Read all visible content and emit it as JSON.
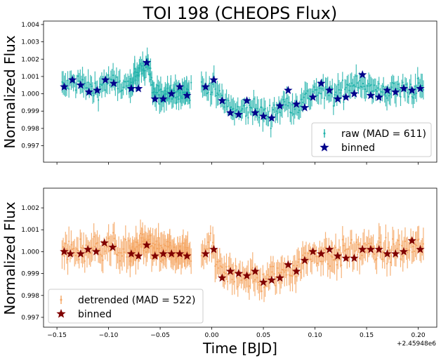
{
  "chart_data": [
    {
      "type": "scatter",
      "title": "TOI 198 (CHEOPS Flux)",
      "ylabel": "Normalized Flux",
      "xlabel": "",
      "xlim": [
        -0.163,
        0.218
      ],
      "ylim": [
        0.99605,
        1.0042
      ],
      "xticks": [
        -0.15,
        -0.1,
        -0.05,
        0.0,
        0.05,
        0.1,
        0.15,
        0.2
      ],
      "yticks": [
        0.997,
        0.998,
        0.999,
        1.0,
        1.001,
        1.002,
        1.003,
        1.004
      ],
      "ytick_labels": [
        "0.997",
        "0.998",
        "0.999",
        "1.000",
        "1.001",
        "1.002",
        "1.003",
        "1.004"
      ],
      "legend": [
        "raw (MAD = 611)",
        "binned"
      ],
      "legend_position": "lower-right",
      "raw_color": "#20b2aa",
      "binned_color": "#00008b",
      "segments": [
        [
          -0.145,
          -0.022
        ],
        [
          -0.08,
          -0.02
        ],
        [
          -0.01,
          0.205
        ]
      ],
      "trend_anchors": [
        [
          -0.145,
          1.0004
        ],
        [
          -0.13,
          1.0007
        ],
        [
          -0.115,
          1.0002
        ],
        [
          -0.1,
          1.0007
        ],
        [
          -0.08,
          1.0004
        ],
        [
          -0.062,
          1.0018
        ],
        [
          -0.055,
          0.9998
        ],
        [
          -0.04,
          1.0001
        ],
        [
          -0.025,
          1.0001
        ],
        [
          0.0,
          1.0005
        ],
        [
          0.01,
          0.9996
        ],
        [
          0.025,
          0.9989
        ],
        [
          0.04,
          0.9992
        ],
        [
          0.055,
          0.9987
        ],
        [
          0.07,
          0.9994
        ],
        [
          0.085,
          0.9994
        ],
        [
          0.1,
          1.0002
        ],
        [
          0.12,
          0.9999
        ],
        [
          0.14,
          1.0008
        ],
        [
          0.16,
          1.0001
        ],
        [
          0.2,
          1.0003
        ]
      ],
      "binned": {
        "x": [
          -0.143,
          -0.135,
          -0.127,
          -0.119,
          -0.111,
          -0.103,
          -0.095,
          -0.078,
          -0.071,
          -0.063,
          -0.055,
          -0.047,
          -0.039,
          -0.031,
          -0.024,
          -0.006,
          0.002,
          0.01,
          0.018,
          0.026,
          0.034,
          0.042,
          0.05,
          0.058,
          0.066,
          0.074,
          0.082,
          0.09,
          0.098,
          0.106,
          0.114,
          0.122,
          0.13,
          0.138,
          0.146,
          0.154,
          0.162,
          0.17,
          0.178,
          0.186,
          0.194,
          0.202
        ],
        "y": [
          1.0004,
          1.0008,
          1.0005,
          1.0001,
          1.0002,
          1.0008,
          1.0006,
          1.0003,
          1.0003,
          1.0018,
          0.9997,
          0.9997,
          1.0,
          1.0004,
          0.9999,
          1.0004,
          1.0008,
          0.9996,
          0.9989,
          0.9988,
          0.9996,
          0.9989,
          0.9987,
          0.9986,
          0.9993,
          1.0002,
          0.9994,
          0.9992,
          0.9998,
          1.0006,
          1.0002,
          0.9997,
          0.9998,
          1.0,
          1.0011,
          0.9999,
          0.9998,
          1.0002,
          1.0001,
          1.0003,
          1.0002,
          1.0003
        ]
      }
    },
    {
      "type": "scatter",
      "title": "",
      "ylabel": "Normalized Flux",
      "xlabel": "Time [BJD]",
      "x_offset_label": "+2.45948e6",
      "xlim": [
        -0.163,
        0.218
      ],
      "ylim": [
        0.99655,
        1.0029
      ],
      "xticks": [
        -0.15,
        -0.1,
        -0.05,
        0.0,
        0.05,
        0.1,
        0.15,
        0.2
      ],
      "xtick_labels": [
        "−0.15",
        "−0.10",
        "−0.05",
        "0.00",
        "0.05",
        "0.10",
        "0.15",
        "0.20"
      ],
      "yticks": [
        0.997,
        0.998,
        0.999,
        1.0,
        1.001,
        1.002
      ],
      "ytick_labels": [
        "0.997",
        "0.998",
        "0.999",
        "1.000",
        "1.001",
        "1.002"
      ],
      "legend": [
        "detrended (MAD = 522)",
        "binned"
      ],
      "legend_position": "lower-left",
      "raw_color": "#f4a460",
      "binned_color": "#800000",
      "segments": [
        [
          -0.145,
          -0.022
        ],
        [
          -0.08,
          -0.02
        ],
        [
          -0.01,
          0.205
        ]
      ],
      "trend_anchors": [
        [
          -0.145,
          1.0
        ],
        [
          -0.12,
          1.0001
        ],
        [
          -0.1,
          1.0003
        ],
        [
          -0.08,
          0.9999
        ],
        [
          -0.062,
          1.0003
        ],
        [
          -0.04,
          0.9999
        ],
        [
          -0.02,
          0.9999
        ],
        [
          0.0,
          1.0001
        ],
        [
          0.01,
          0.9989
        ],
        [
          0.03,
          0.999
        ],
        [
          0.05,
          0.9986
        ],
        [
          0.065,
          0.999
        ],
        [
          0.08,
          0.9993
        ],
        [
          0.1,
          0.9999
        ],
        [
          0.12,
          0.9998
        ],
        [
          0.14,
          1.0001
        ],
        [
          0.17,
          1.0
        ],
        [
          0.2,
          1.0002
        ]
      ],
      "binned": {
        "x": [
          -0.143,
          -0.137,
          -0.127,
          -0.12,
          -0.112,
          -0.104,
          -0.096,
          -0.078,
          -0.071,
          -0.063,
          -0.055,
          -0.047,
          -0.039,
          -0.031,
          -0.024,
          -0.006,
          0.002,
          0.01,
          0.018,
          0.026,
          0.034,
          0.042,
          0.05,
          0.058,
          0.066,
          0.074,
          0.082,
          0.09,
          0.098,
          0.106,
          0.114,
          0.122,
          0.13,
          0.138,
          0.146,
          0.154,
          0.162,
          0.17,
          0.178,
          0.186,
          0.194,
          0.202
        ],
        "y": [
          1.0,
          0.9999,
          0.9999,
          1.0001,
          1.0,
          1.0004,
          1.0002,
          0.9999,
          0.9998,
          1.0003,
          0.9998,
          0.9999,
          0.9999,
          0.9999,
          0.9998,
          0.9999,
          1.0001,
          0.9988,
          0.9991,
          0.999,
          0.9989,
          0.9991,
          0.9986,
          0.9987,
          0.9988,
          0.9994,
          0.9991,
          0.9996,
          1.0,
          0.9999,
          1.0001,
          0.9998,
          0.9997,
          0.9997,
          1.0001,
          1.0001,
          1.0001,
          0.9999,
          0.9999,
          1.0,
          1.0005,
          1.0001
        ]
      }
    }
  ]
}
